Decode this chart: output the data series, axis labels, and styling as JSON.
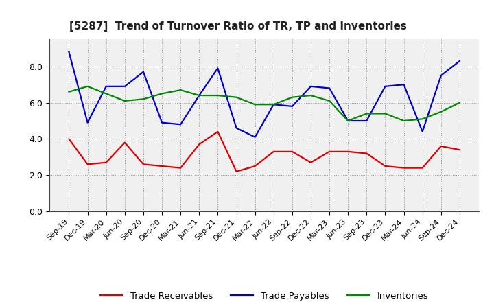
{
  "title": "[5287]  Trend of Turnover Ratio of TR, TP and Inventories",
  "labels": [
    "Sep-19",
    "Dec-19",
    "Mar-20",
    "Jun-20",
    "Sep-20",
    "Dec-20",
    "Mar-21",
    "Jun-21",
    "Sep-21",
    "Dec-21",
    "Mar-22",
    "Jun-22",
    "Sep-22",
    "Dec-22",
    "Mar-23",
    "Jun-23",
    "Sep-23",
    "Dec-23",
    "Mar-24",
    "Jun-24",
    "Sep-24",
    "Dec-24"
  ],
  "trade_receivables": [
    4.0,
    2.6,
    2.7,
    3.8,
    2.6,
    2.5,
    2.4,
    3.7,
    4.4,
    2.2,
    2.5,
    3.3,
    3.3,
    2.7,
    3.3,
    3.3,
    3.2,
    2.5,
    2.4,
    2.4,
    3.6,
    3.4
  ],
  "trade_payables": [
    8.8,
    4.9,
    6.9,
    6.9,
    7.7,
    4.9,
    4.8,
    6.4,
    7.9,
    4.6,
    4.1,
    5.9,
    5.8,
    6.9,
    6.8,
    5.0,
    5.0,
    6.9,
    7.0,
    4.4,
    7.5,
    8.3
  ],
  "inventories": [
    6.6,
    6.9,
    6.5,
    6.1,
    6.2,
    6.5,
    6.7,
    6.4,
    6.4,
    6.3,
    5.9,
    5.9,
    6.3,
    6.4,
    6.1,
    5.0,
    5.4,
    5.4,
    5.0,
    5.1,
    5.5,
    6.0
  ],
  "ylim": [
    0.0,
    9.5
  ],
  "yticks": [
    0.0,
    2.0,
    4.0,
    6.0,
    8.0
  ],
  "color_tr": "#dd0000",
  "color_tp": "#0000cc",
  "color_inv": "#008800",
  "bg_color": "#f0f0f0",
  "grid_color": "#999999",
  "spine_color": "#444444"
}
